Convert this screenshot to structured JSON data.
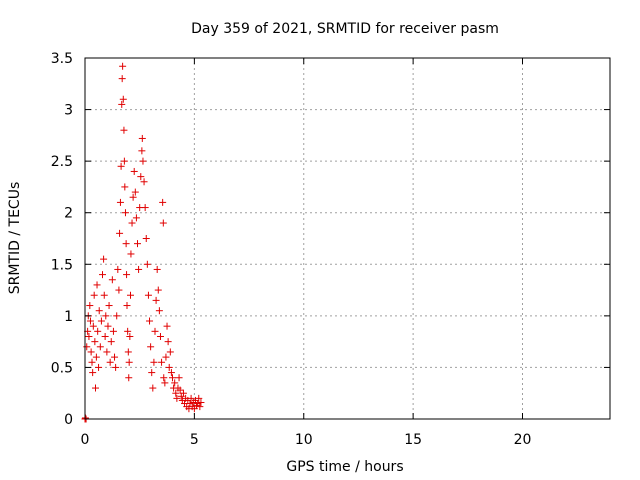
{
  "chart_data": {
    "type": "scatter",
    "title": "Day 359 of 2021, SRMTID for receiver pasm",
    "xlabel": "GPS time / hours",
    "ylabel": "SRMTID / TECUs",
    "xlim": [
      0,
      24
    ],
    "ylim": [
      0,
      3.5
    ],
    "xticks": [
      0,
      5,
      10,
      15,
      20
    ],
    "xtick_labels": [
      "0",
      "5",
      "10",
      "15",
      "20"
    ],
    "yticks": [
      0,
      0.5,
      1,
      1.5,
      2,
      2.5,
      3,
      3.5
    ],
    "ytick_labels": [
      "0",
      "0.5",
      "1",
      "1.5",
      "2",
      "2.5",
      "3",
      "3.5"
    ],
    "grid": true,
    "marker": "+",
    "color": "#e00000",
    "series": [
      {
        "name": "pasm",
        "points": [
          [
            0.0,
            0.0
          ],
          [
            0.02,
            0.01
          ],
          [
            0.05,
            0.0
          ],
          [
            0.08,
            0.7
          ],
          [
            0.12,
            0.85
          ],
          [
            0.15,
            1.0
          ],
          [
            0.18,
            0.8
          ],
          [
            0.22,
            1.1
          ],
          [
            0.25,
            0.95
          ],
          [
            0.28,
            0.65
          ],
          [
            0.32,
            0.55
          ],
          [
            0.35,
            0.45
          ],
          [
            0.38,
            0.9
          ],
          [
            0.42,
            1.2
          ],
          [
            0.45,
            0.75
          ],
          [
            0.48,
            0.3
          ],
          [
            0.52,
            0.6
          ],
          [
            0.55,
            1.3
          ],
          [
            0.58,
            0.85
          ],
          [
            0.62,
            0.5
          ],
          [
            0.65,
            1.05
          ],
          [
            0.7,
            0.7
          ],
          [
            0.75,
            0.95
          ],
          [
            0.8,
            1.4
          ],
          [
            0.85,
            1.55
          ],
          [
            0.88,
            1.2
          ],
          [
            0.92,
            0.8
          ],
          [
            0.95,
            1.0
          ],
          [
            1.0,
            0.65
          ],
          [
            1.05,
            0.9
          ],
          [
            1.1,
            1.1
          ],
          [
            1.15,
            0.55
          ],
          [
            1.2,
            0.75
          ],
          [
            1.25,
            1.35
          ],
          [
            1.3,
            0.85
          ],
          [
            1.35,
            0.6
          ],
          [
            1.4,
            0.5
          ],
          [
            1.45,
            1.0
          ],
          [
            1.5,
            1.45
          ],
          [
            1.55,
            1.25
          ],
          [
            1.58,
            1.8
          ],
          [
            1.62,
            2.1
          ],
          [
            1.65,
            2.45
          ],
          [
            1.68,
            3.05
          ],
          [
            1.7,
            3.3
          ],
          [
            1.72,
            3.42
          ],
          [
            1.75,
            3.1
          ],
          [
            1.78,
            2.8
          ],
          [
            1.8,
            2.5
          ],
          [
            1.82,
            2.25
          ],
          [
            1.85,
            2.0
          ],
          [
            1.88,
            1.7
          ],
          [
            1.9,
            1.4
          ],
          [
            1.92,
            1.1
          ],
          [
            1.95,
            0.85
          ],
          [
            1.98,
            0.65
          ],
          [
            2.0,
            0.4
          ],
          [
            2.02,
            0.55
          ],
          [
            2.05,
            0.8
          ],
          [
            2.08,
            1.2
          ],
          [
            2.1,
            1.6
          ],
          [
            2.15,
            1.9
          ],
          [
            2.2,
            2.15
          ],
          [
            2.25,
            2.4
          ],
          [
            2.3,
            2.2
          ],
          [
            2.35,
            1.95
          ],
          [
            2.4,
            1.7
          ],
          [
            2.45,
            1.45
          ],
          [
            2.5,
            2.05
          ],
          [
            2.55,
            2.35
          ],
          [
            2.6,
            2.6
          ],
          [
            2.62,
            2.72
          ],
          [
            2.65,
            2.5
          ],
          [
            2.7,
            2.3
          ],
          [
            2.75,
            2.05
          ],
          [
            2.8,
            1.75
          ],
          [
            2.85,
            1.5
          ],
          [
            2.9,
            1.2
          ],
          [
            2.95,
            0.95
          ],
          [
            3.0,
            0.7
          ],
          [
            3.05,
            0.45
          ],
          [
            3.1,
            0.3
          ],
          [
            3.15,
            0.55
          ],
          [
            3.2,
            0.85
          ],
          [
            3.25,
            1.15
          ],
          [
            3.3,
            1.45
          ],
          [
            3.35,
            1.25
          ],
          [
            3.4,
            1.05
          ],
          [
            3.45,
            0.8
          ],
          [
            3.5,
            0.55
          ],
          [
            3.55,
            2.1
          ],
          [
            3.58,
            1.9
          ],
          [
            3.6,
            0.4
          ],
          [
            3.65,
            0.35
          ],
          [
            3.7,
            0.6
          ],
          [
            3.75,
            0.9
          ],
          [
            3.8,
            0.75
          ],
          [
            3.85,
            0.5
          ],
          [
            3.9,
            0.65
          ],
          [
            3.95,
            0.45
          ],
          [
            4.0,
            0.4
          ],
          [
            4.05,
            0.3
          ],
          [
            4.1,
            0.35
          ],
          [
            4.15,
            0.25
          ],
          [
            4.2,
            0.2
          ],
          [
            4.25,
            0.3
          ],
          [
            4.3,
            0.4
          ],
          [
            4.35,
            0.28
          ],
          [
            4.4,
            0.22
          ],
          [
            4.45,
            0.18
          ],
          [
            4.5,
            0.25
          ],
          [
            4.55,
            0.15
          ],
          [
            4.6,
            0.2
          ],
          [
            4.65,
            0.12
          ],
          [
            4.7,
            0.18
          ],
          [
            4.75,
            0.1
          ],
          [
            4.8,
            0.15
          ],
          [
            4.85,
            0.2
          ],
          [
            4.9,
            0.12
          ],
          [
            4.95,
            0.16
          ],
          [
            5.0,
            0.1
          ],
          [
            5.05,
            0.18
          ],
          [
            5.1,
            0.13
          ],
          [
            5.15,
            0.15
          ],
          [
            5.2,
            0.2
          ],
          [
            5.25,
            0.12
          ],
          [
            5.3,
            0.16
          ]
        ]
      }
    ]
  }
}
